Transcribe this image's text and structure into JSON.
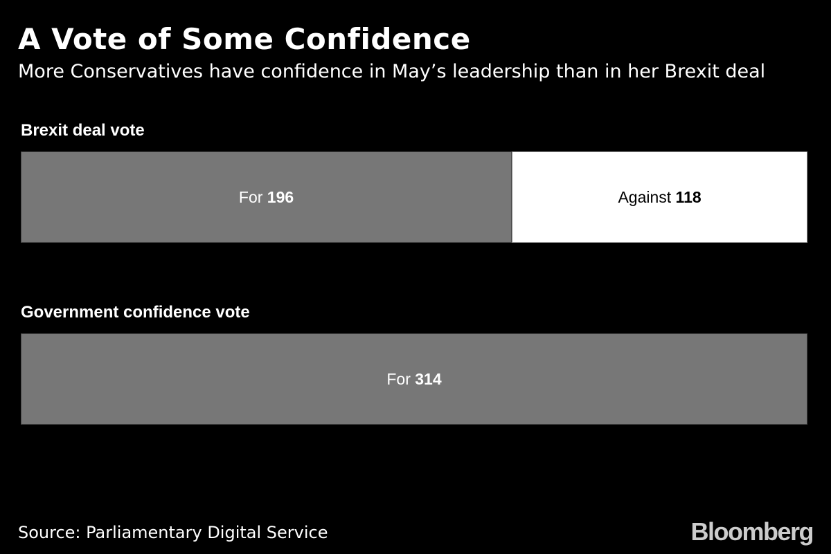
{
  "title": "A Vote of Some Confidence",
  "subtitle": "More Conservatives have confidence in May’s leadership than in her Brexit deal",
  "source": "Source: Parliamentary Digital Service",
  "logo": "Bloomberg",
  "chart_data": {
    "type": "bar",
    "orientation": "horizontal-stacked",
    "title": "A Vote of Some Confidence",
    "subtitle": "More Conservatives have confidence in May’s leadership than in her Brexit deal",
    "groups": [
      {
        "name": "Brexit deal vote",
        "segments": [
          {
            "label": "For",
            "value": 196,
            "color": "#777777",
            "text_color": "#ffffff"
          },
          {
            "label": "Against",
            "value": 118,
            "color": "#ffffff",
            "text_color": "#000000"
          }
        ]
      },
      {
        "name": "Government confidence vote",
        "segments": [
          {
            "label": "For",
            "value": 314,
            "color": "#777777",
            "text_color": "#ffffff"
          }
        ]
      }
    ],
    "xlim": [
      0,
      314
    ],
    "grid": false
  }
}
